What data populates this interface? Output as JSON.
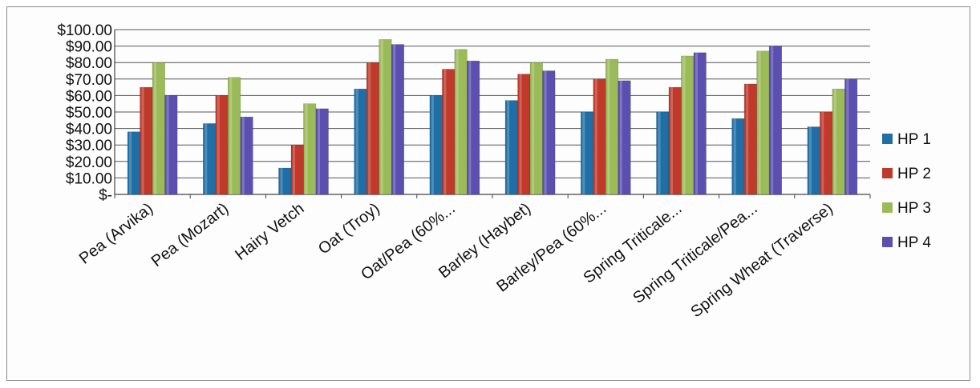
{
  "chart_data": {
    "type": "bar",
    "title": "",
    "xlabel": "",
    "ylabel": "",
    "ylim": [
      0,
      100
    ],
    "y_ticks": [
      "$-",
      "$10.00",
      "$20.00",
      "$30.00",
      "$40.00",
      "$50.00",
      "$60.00",
      "$70.00",
      "$80.00",
      "$90.00",
      "$100.00"
    ],
    "grid": true,
    "legend_position": "right",
    "categories": [
      "Pea  (Arvika)",
      "Pea (Mozart)",
      "Hairy Vetch",
      "Oat (Troy)",
      "Oat/Pea (60%...",
      "Barley (Haybet)",
      "Barley/Pea (60%...",
      "Spring Triticale...",
      "Spring Triticale/Pea...",
      "Spring Wheat (Traverse)"
    ],
    "series": [
      {
        "name": "HP 1",
        "color": "#1f6fa6",
        "values": [
          38,
          43,
          16,
          64,
          60,
          57,
          50,
          50,
          46,
          41
        ]
      },
      {
        "name": "HP 2",
        "color": "#c0392b",
        "values": [
          65,
          60,
          30,
          80,
          76,
          73,
          70,
          65,
          67,
          50
        ]
      },
      {
        "name": "HP 3",
        "color": "#9bbb59",
        "values": [
          80,
          71,
          55,
          94,
          88,
          80,
          82,
          84,
          87,
          64
        ]
      },
      {
        "name": "HP 4",
        "color": "#5b4fb0",
        "values": [
          60,
          47,
          52,
          91,
          81,
          75,
          69,
          86,
          90,
          70
        ]
      }
    ]
  }
}
